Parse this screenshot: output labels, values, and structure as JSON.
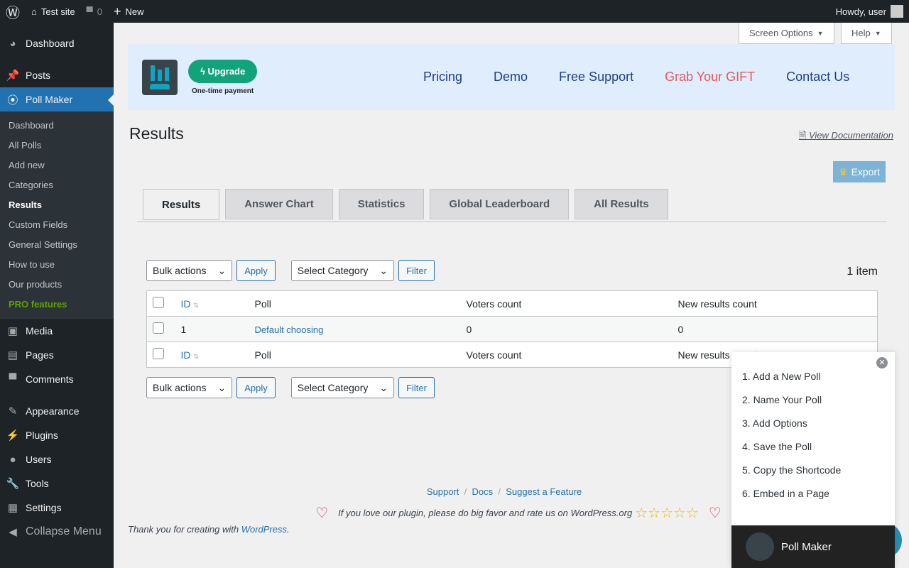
{
  "adminbar": {
    "site": "Test site",
    "comments": "0",
    "new": "New",
    "howdy": "Howdy, user"
  },
  "sidebar": {
    "items": [
      {
        "label": "Dashboard",
        "icon": "dashboard-icon"
      },
      {
        "label": "Posts",
        "icon": "pin-icon"
      },
      {
        "label": "Poll Maker",
        "icon": "poll-icon"
      }
    ],
    "sub": [
      "Dashboard",
      "All Polls",
      "Add new",
      "Categories",
      "Results",
      "Custom Fields",
      "General Settings",
      "How to use",
      "Our products",
      "PRO features"
    ],
    "lower": [
      {
        "label": "Media",
        "icon": "media-icon"
      },
      {
        "label": "Pages",
        "icon": "pages-icon"
      },
      {
        "label": "Comments",
        "icon": "comment-icon"
      },
      {
        "label": "Appearance",
        "icon": "brush-icon"
      },
      {
        "label": "Plugins",
        "icon": "plugin-icon"
      },
      {
        "label": "Users",
        "icon": "user-icon"
      },
      {
        "label": "Tools",
        "icon": "wrench-icon"
      },
      {
        "label": "Settings",
        "icon": "settings-icon"
      }
    ],
    "collapse": "Collapse Menu"
  },
  "top": {
    "screen_options": "Screen Options",
    "help": "Help"
  },
  "banner": {
    "upgrade": "Upgrade",
    "one_time": "One-time payment",
    "nav": [
      "Pricing",
      "Demo",
      "Free Support",
      "Grab Your GIFT",
      "Contact Us"
    ],
    "gift_color": "#e05b5b"
  },
  "page": {
    "title": "Results",
    "doc": "View Documentation",
    "export": "Export"
  },
  "tabs": [
    "Results",
    "Answer Chart",
    "Statistics",
    "Global Leaderboard",
    "All Results"
  ],
  "controls": {
    "bulk": "Bulk actions",
    "apply": "Apply",
    "category": "Select Category",
    "filter": "Filter",
    "count": "1 item"
  },
  "table": {
    "headers": [
      "ID",
      "Poll",
      "Voters count",
      "New results count"
    ],
    "rows": [
      {
        "id": "1",
        "poll": "Default choosing",
        "voters": "0",
        "new": "0"
      }
    ]
  },
  "footer": {
    "links": [
      "Support",
      "Docs",
      "Suggest a Feature"
    ],
    "rate": "If you love our plugin, please do big favor and rate us on WordPress.org",
    "thanks": "Thank you for creating with ",
    "wp": "WordPress",
    "period": "."
  },
  "popup": {
    "steps": [
      "1. Add a New Poll",
      "2. Name Your Poll",
      "3. Add Options",
      "4. Save the Poll",
      "5. Copy the Shortcode",
      "6. Embed in a Page"
    ],
    "title": "Poll Maker"
  }
}
